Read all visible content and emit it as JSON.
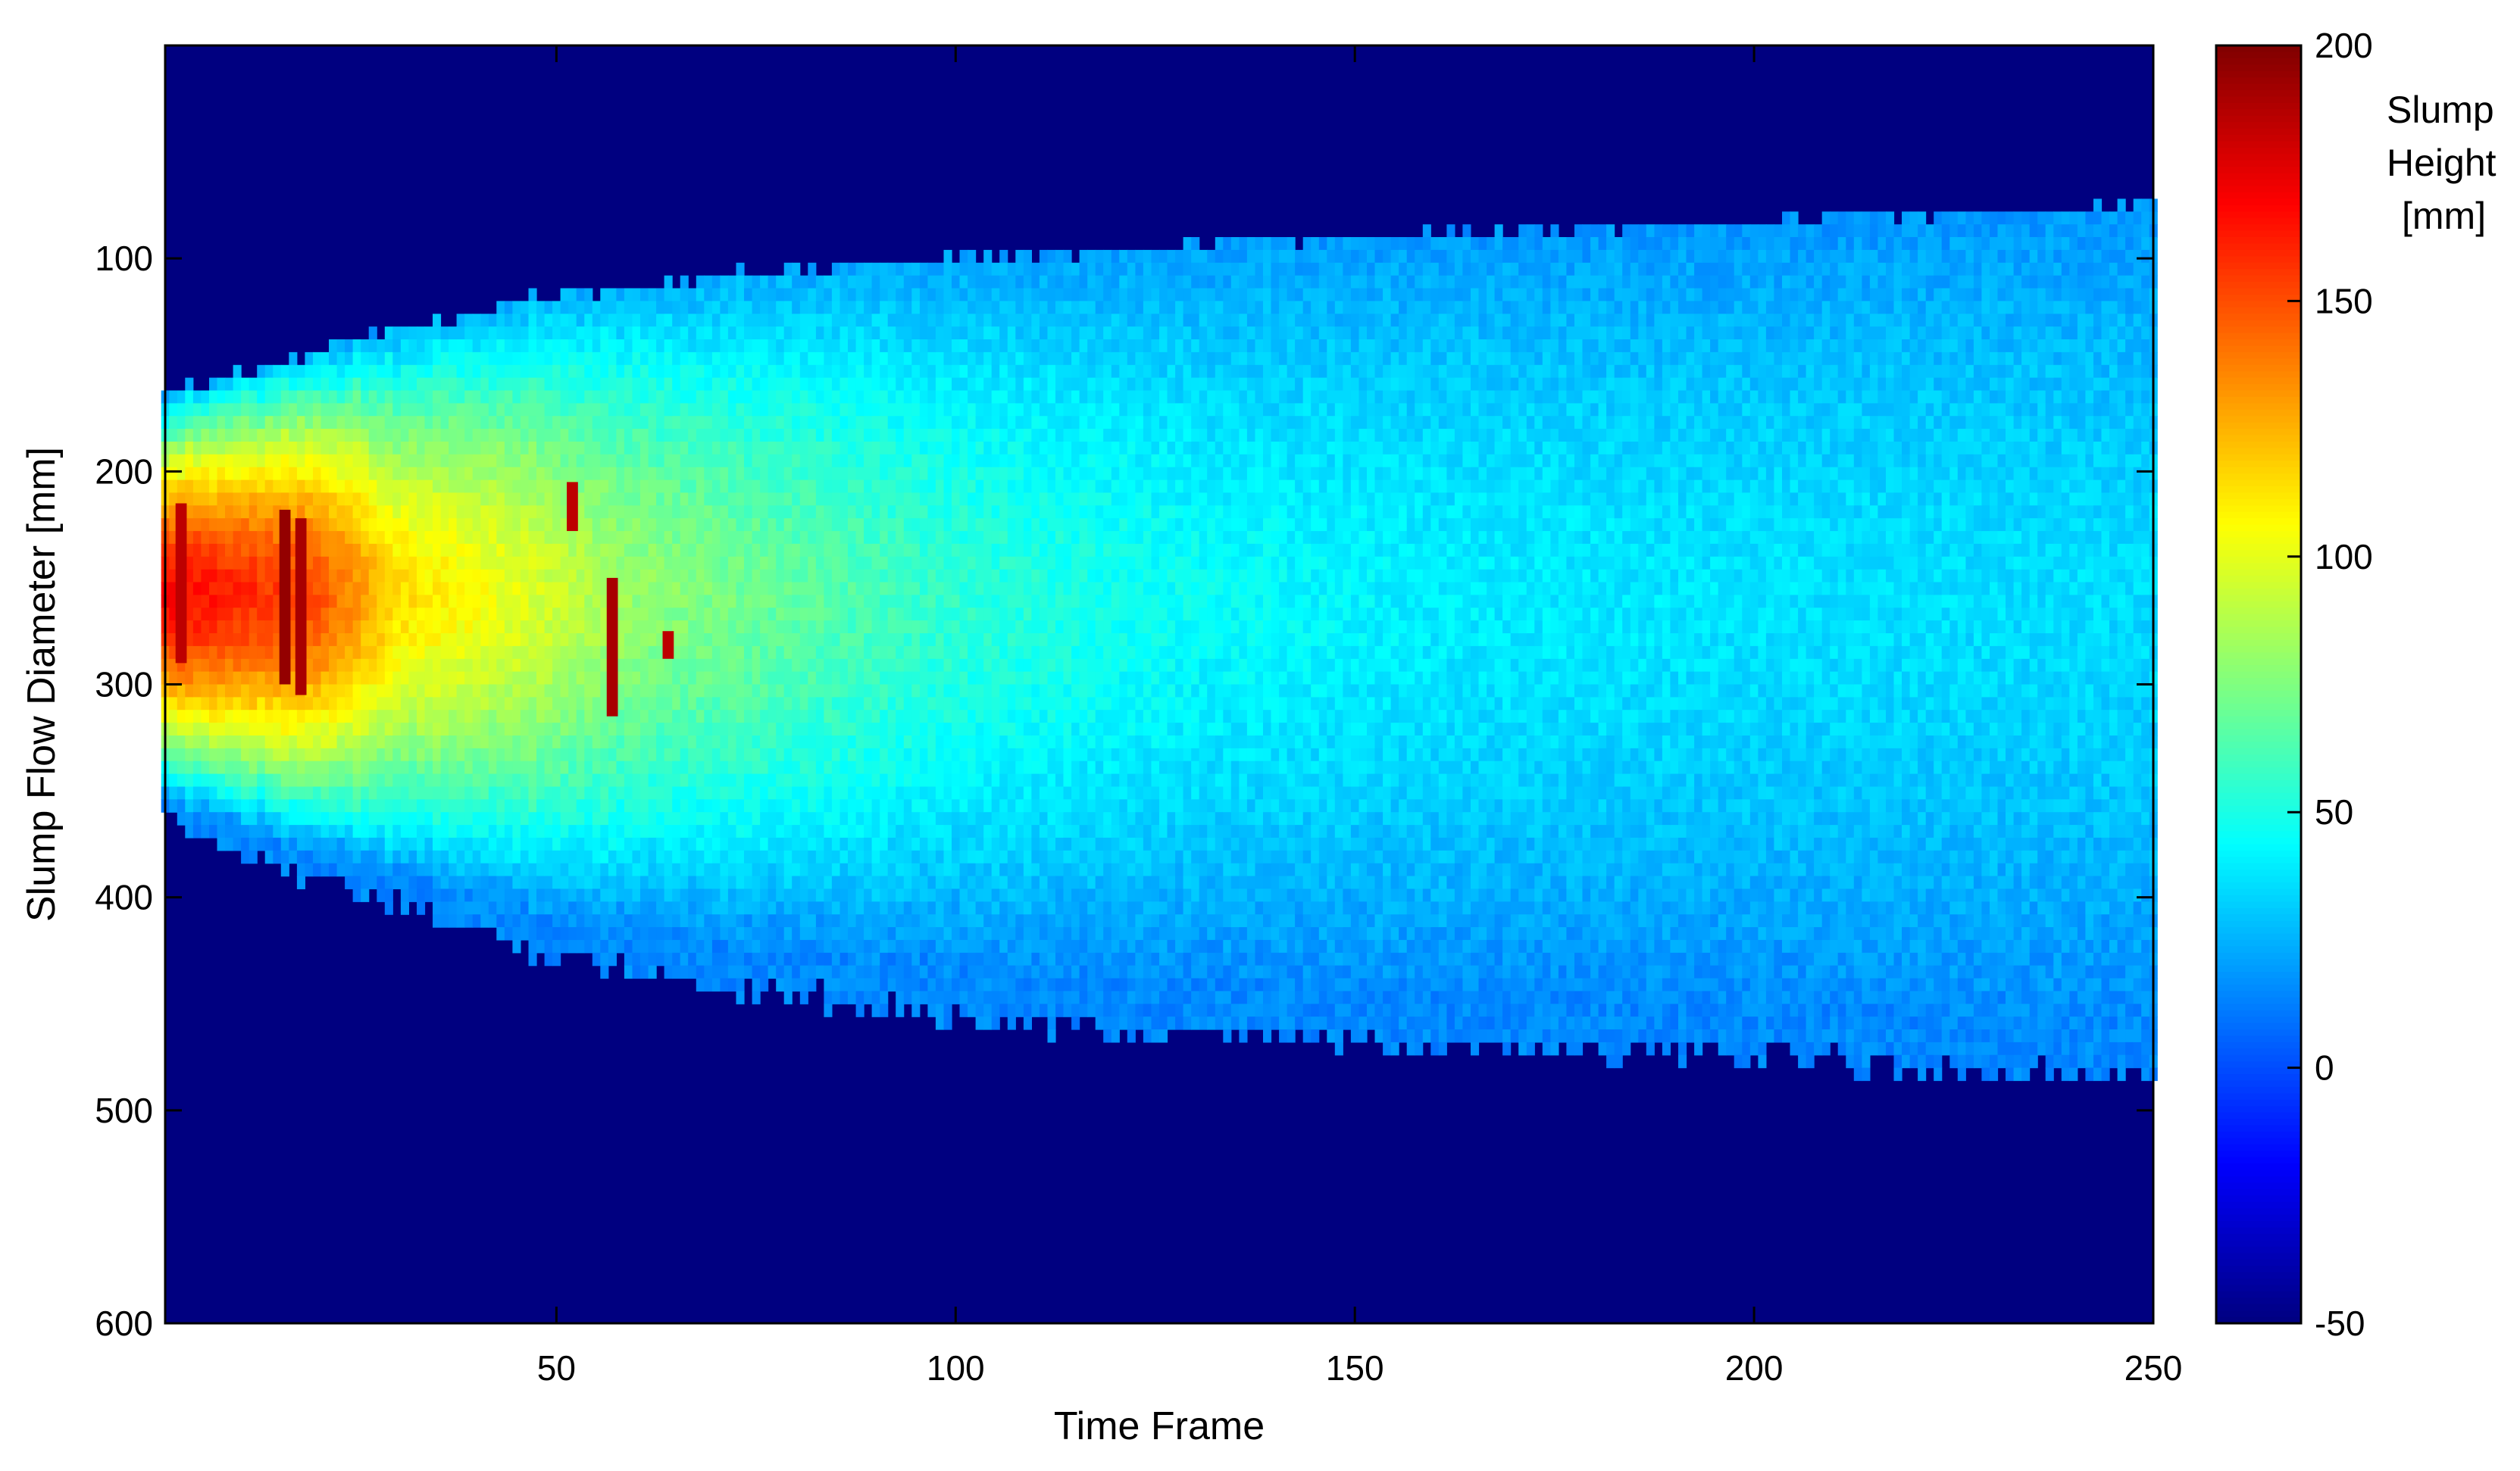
{
  "chart_data": {
    "type": "heatmap",
    "title": "",
    "xlabel": "Time Frame",
    "ylabel": "Slump Flow Diameter [mm]",
    "xlim": [
      1,
      250
    ],
    "ylim": [
      600,
      0
    ],
    "y_reversed": true,
    "xticks": [
      50,
      100,
      150,
      200,
      250
    ],
    "yticks": [
      100,
      200,
      300,
      400,
      500,
      600
    ],
    "colormap": "jet",
    "colorbar": {
      "title_lines": [
        "Slump",
        "Height",
        "[mm]"
      ],
      "range": [
        -50,
        200
      ],
      "ticks": [
        200,
        150,
        100,
        50,
        0,
        -50
      ]
    },
    "background_value": -50,
    "envelope": {
      "frames": [
        1,
        10,
        25,
        50,
        75,
        100,
        125,
        150,
        175,
        200,
        225,
        250
      ],
      "top_mm": [
        165,
        158,
        140,
        120,
        110,
        102,
        98,
        93,
        90,
        86,
        81,
        78
      ],
      "bottom_mm": [
        360,
        375,
        395,
        425,
        440,
        453,
        462,
        465,
        468,
        470,
        478,
        482
      ]
    },
    "core_height_mm": {
      "frames": [
        1,
        10,
        20,
        30,
        45,
        60,
        75,
        100,
        130,
        160,
        200,
        250
      ],
      "values": [
        170,
        160,
        150,
        115,
        100,
        80,
        70,
        55,
        45,
        40,
        37,
        35
      ]
    },
    "core_center_mm": 255,
    "hot_spots": [
      {
        "frame": 3,
        "from_mm": 215,
        "to_mm": 290,
        "value": 185
      },
      {
        "frame": 16,
        "from_mm": 218,
        "to_mm": 300,
        "value": 195
      },
      {
        "frame": 18,
        "from_mm": 222,
        "to_mm": 305,
        "value": 190
      },
      {
        "frame": 52,
        "from_mm": 205,
        "to_mm": 228,
        "value": 185
      },
      {
        "frame": 57,
        "from_mm": 250,
        "to_mm": 315,
        "value": 190
      },
      {
        "frame": 64,
        "from_mm": 275,
        "to_mm": 288,
        "value": 185
      }
    ]
  },
  "colors": {
    "background": "#00008f",
    "axis": "#000000"
  }
}
